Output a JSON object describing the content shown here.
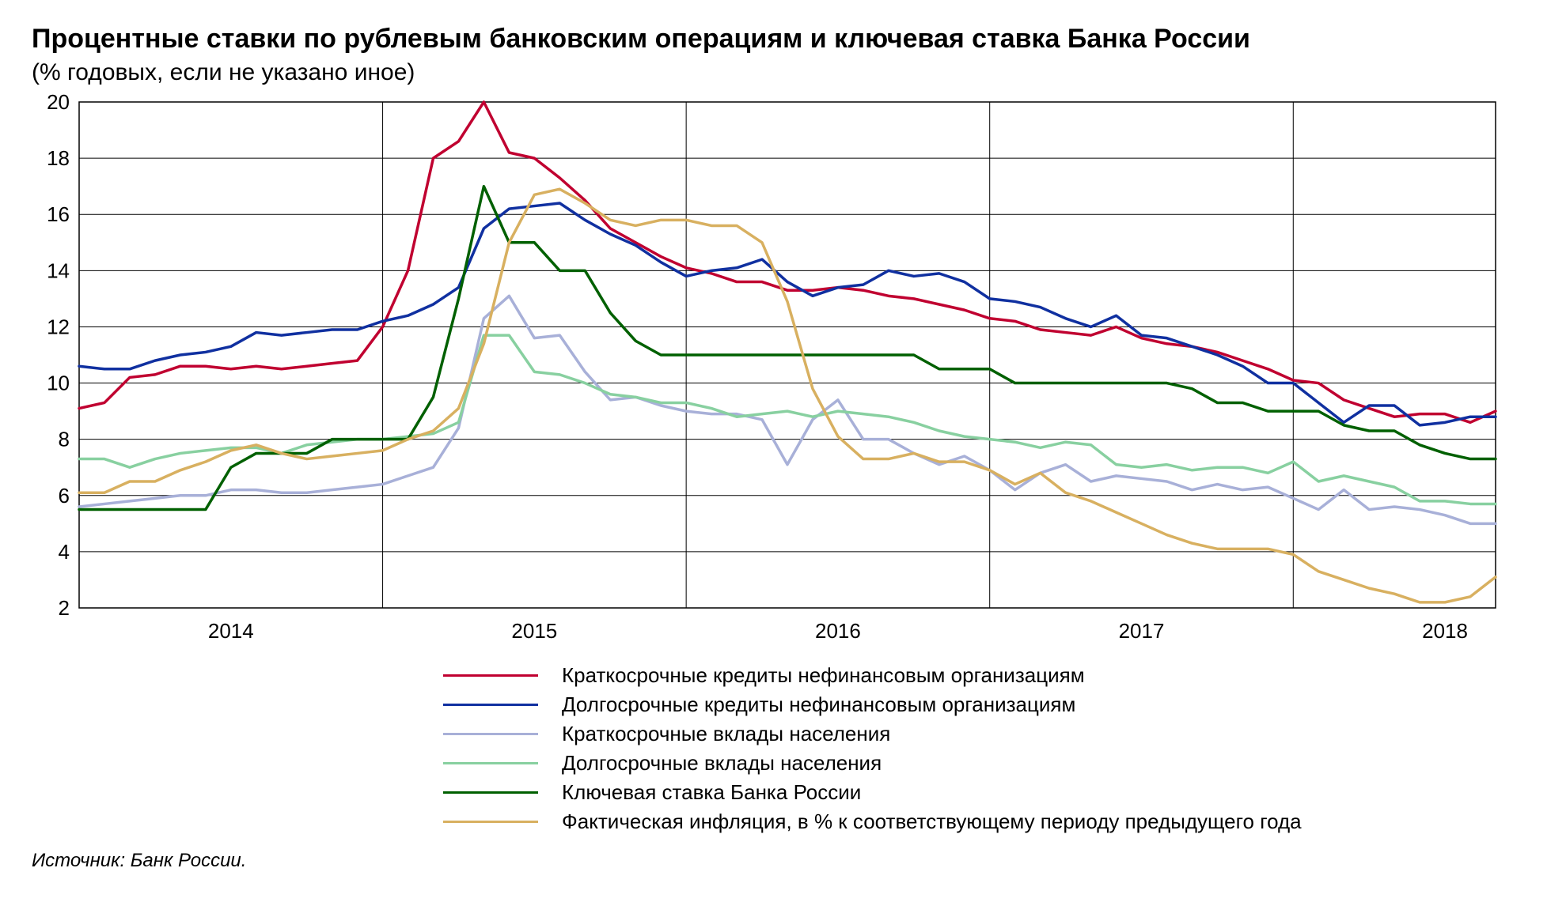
{
  "title": "Процентные ставки по рублевым банковским операциям и ключевая ставка Банка России",
  "subtitle": "(% годовых, если не указано иное)",
  "source": "Источник: Банк России.",
  "chart": {
    "type": "line",
    "background_color": "#ffffff",
    "grid_color": "#000000",
    "grid_width": 1,
    "axis_color": "#000000",
    "axis_width": 1.5,
    "yaxis": {
      "min": 2,
      "max": 20,
      "ticks": [
        2,
        4,
        6,
        8,
        10,
        12,
        14,
        16,
        18,
        20
      ],
      "fontsize": 26
    },
    "xaxis": {
      "year_labels": [
        "2014",
        "2015",
        "2016",
        "2017",
        "2018"
      ],
      "year_positions": [
        6,
        18,
        30,
        42,
        54
      ],
      "fontsize": 26,
      "vlines": [
        12,
        24,
        36,
        48
      ],
      "n_points": 57
    },
    "legend_fontsize": 26,
    "line_width": 3.5,
    "series": [
      {
        "key": "short_credit",
        "label": "Краткосрочные кредиты нефинансовым организациям",
        "color": "#c00030",
        "values": [
          9.1,
          9.3,
          10.2,
          10.3,
          10.6,
          10.6,
          10.5,
          10.6,
          10.5,
          10.6,
          10.7,
          10.8,
          12.0,
          14.0,
          18.0,
          18.6,
          20.0,
          18.2,
          18.0,
          17.3,
          16.5,
          15.5,
          15.0,
          14.5,
          14.1,
          13.9,
          13.6,
          13.6,
          13.3,
          13.3,
          13.4,
          13.3,
          13.1,
          13.0,
          12.8,
          12.6,
          12.3,
          12.2,
          11.9,
          11.8,
          11.7,
          12.0,
          11.6,
          11.4,
          11.3,
          11.1,
          10.8,
          10.5,
          10.1,
          10.0,
          9.4,
          9.1,
          8.8,
          8.9,
          8.9,
          8.6,
          9.0
        ]
      },
      {
        "key": "long_credit",
        "label": "Долгосрочные кредиты нефинансовым организациям",
        "color": "#1030a0",
        "values": [
          10.6,
          10.5,
          10.5,
          10.8,
          11.0,
          11.1,
          11.3,
          11.8,
          11.7,
          11.8,
          11.9,
          11.9,
          12.2,
          12.4,
          12.8,
          13.4,
          15.5,
          16.2,
          16.3,
          16.4,
          15.8,
          15.3,
          14.9,
          14.3,
          13.8,
          14.0,
          14.1,
          14.4,
          13.6,
          13.1,
          13.4,
          13.5,
          14.0,
          13.8,
          13.9,
          13.6,
          13.0,
          12.9,
          12.7,
          12.3,
          12.0,
          12.4,
          11.7,
          11.6,
          11.3,
          11.0,
          10.6,
          10.0,
          10.0,
          9.3,
          8.6,
          9.2,
          9.2,
          8.5,
          8.6,
          8.8,
          8.8
        ]
      },
      {
        "key": "short_depo",
        "label": "Краткосрочные вклады населения",
        "color": "#a8b0d8",
        "values": [
          5.6,
          5.7,
          5.8,
          5.9,
          6.0,
          6.0,
          6.2,
          6.2,
          6.1,
          6.1,
          6.2,
          6.3,
          6.4,
          6.7,
          7.0,
          8.4,
          12.3,
          13.1,
          11.6,
          11.7,
          10.4,
          9.4,
          9.5,
          9.2,
          9.0,
          8.9,
          8.9,
          8.7,
          7.1,
          8.7,
          9.4,
          8.0,
          8.0,
          7.5,
          7.1,
          7.4,
          6.9,
          6.2,
          6.8,
          7.1,
          6.5,
          6.7,
          6.6,
          6.5,
          6.2,
          6.4,
          6.2,
          6.3,
          5.9,
          5.5,
          6.2,
          5.5,
          5.6,
          5.5,
          5.3,
          5.0,
          5.0
        ]
      },
      {
        "key": "long_depo",
        "label": "Долгосрочные вклады населения",
        "color": "#88d0a0",
        "values": [
          7.3,
          7.3,
          7.0,
          7.3,
          7.5,
          7.6,
          7.7,
          7.7,
          7.5,
          7.8,
          7.9,
          8.0,
          8.0,
          8.1,
          8.2,
          8.6,
          11.7,
          11.7,
          10.4,
          10.3,
          10.0,
          9.6,
          9.5,
          9.3,
          9.3,
          9.1,
          8.8,
          8.9,
          9.0,
          8.8,
          9.0,
          8.9,
          8.8,
          8.6,
          8.3,
          8.1,
          8.0,
          7.9,
          7.7,
          7.9,
          7.8,
          7.1,
          7.0,
          7.1,
          6.9,
          7.0,
          7.0,
          6.8,
          7.2,
          6.5,
          6.7,
          6.5,
          6.3,
          5.8,
          5.8,
          5.7,
          5.7
        ]
      },
      {
        "key": "key_rate",
        "label": "Ключевая ставка Банка России",
        "color": "#006000",
        "values": [
          5.5,
          5.5,
          5.5,
          5.5,
          5.5,
          5.5,
          7.0,
          7.5,
          7.5,
          7.5,
          8.0,
          8.0,
          8.0,
          8.0,
          9.5,
          13.0,
          17.0,
          15.0,
          15.0,
          14.0,
          14.0,
          12.5,
          11.5,
          11.0,
          11.0,
          11.0,
          11.0,
          11.0,
          11.0,
          11.0,
          11.0,
          11.0,
          11.0,
          11.0,
          10.5,
          10.5,
          10.5,
          10.0,
          10.0,
          10.0,
          10.0,
          10.0,
          10.0,
          10.0,
          9.8,
          9.3,
          9.3,
          9.0,
          9.0,
          9.0,
          8.5,
          8.3,
          8.3,
          7.8,
          7.5,
          7.3,
          7.3
        ]
      },
      {
        "key": "inflation",
        "label": "Фактическая инфляция, в % к соответствующему  периоду предыдущего года",
        "color": "#d8b060",
        "values": [
          6.1,
          6.1,
          6.5,
          6.5,
          6.9,
          7.2,
          7.6,
          7.8,
          7.5,
          7.3,
          7.4,
          7.5,
          7.6,
          8.0,
          8.3,
          9.1,
          11.4,
          15.0,
          16.7,
          16.9,
          16.4,
          15.8,
          15.6,
          15.8,
          15.8,
          15.6,
          15.6,
          15.0,
          12.9,
          9.8,
          8.1,
          7.3,
          7.3,
          7.5,
          7.2,
          7.2,
          6.9,
          6.4,
          6.8,
          6.1,
          5.8,
          5.4,
          5.0,
          4.6,
          4.3,
          4.1,
          4.1,
          4.1,
          3.9,
          3.3,
          3.0,
          2.7,
          2.5,
          2.2,
          2.2,
          2.4,
          3.1
        ]
      }
    ]
  }
}
